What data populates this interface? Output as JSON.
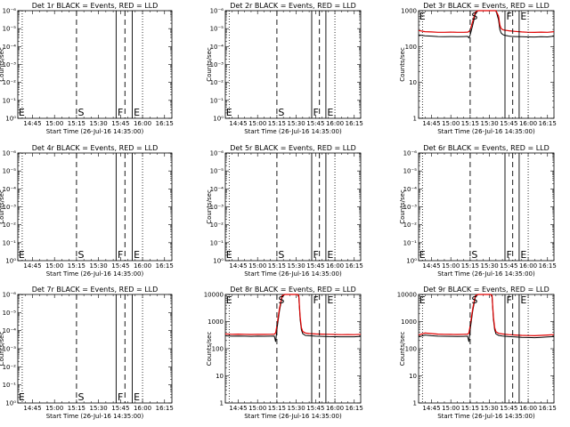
{
  "colors": {
    "background": "#ffffff",
    "events": "#000000",
    "lld": "#e00000"
  },
  "common": {
    "ylabel": "Counts/sec",
    "xlabel": "Start Time (26-Jul-16 14:35:00)",
    "x_tick_labels": [
      "14:45",
      "15:00",
      "15:15",
      "15:30",
      "15:45",
      "16:00",
      "16:15"
    ],
    "x_ticks_min": [
      10,
      25,
      40,
      55,
      70,
      85,
      100
    ],
    "xlim_min": [
      0,
      105
    ],
    "dotted_lines_min": [
      3,
      85
    ],
    "dashed_lines_min": [
      40,
      73
    ],
    "solid_lines_min": [
      67,
      78
    ],
    "marker_S": "S",
    "marker_F": "F",
    "marker_E": "E",
    "markers_min": {
      "E_left": 0.5,
      "S": 41,
      "F": 68,
      "E_right": 79
    }
  },
  "chart_data": [
    {
      "type": "line",
      "title": "Det 1r BLACK = Events, RED = LLD",
      "y_scale": "log",
      "ylim": [
        1,
        10
      ],
      "grid": false,
      "y_tick_labels": [
        "10⁰",
        "10⁻¹",
        "10⁻²",
        "10⁻³",
        "10⁻⁴",
        "10⁻⁵",
        "10⁻⁶"
      ],
      "series": []
    },
    {
      "type": "line",
      "title": "Det 2r BLACK = Events, RED = LLD",
      "y_scale": "log",
      "ylim": [
        1,
        10
      ],
      "grid": false,
      "y_tick_labels": [
        "10⁰",
        "10⁻¹",
        "10⁻²",
        "10⁻³",
        "10⁻⁴",
        "10⁻⁵",
        "10⁻⁶"
      ],
      "series": []
    },
    {
      "type": "line",
      "title": "Det 3r BLACK = Events, RED = LLD",
      "y_scale": "log",
      "ylim": [
        1,
        1000
      ],
      "grid": false,
      "y_tick_labels": [
        "1",
        "10",
        "100",
        "1000"
      ],
      "series": [
        {
          "color": "red",
          "x": [
            0,
            5,
            10,
            15,
            20,
            25,
            30,
            35,
            38,
            39,
            40,
            42,
            44,
            46,
            60,
            62,
            63,
            64,
            65,
            66,
            67,
            69,
            70,
            72,
            75,
            80,
            85,
            90,
            95,
            100,
            105
          ],
          "values": [
            280,
            260,
            255,
            250,
            250,
            252,
            250,
            250,
            252,
            262,
            290,
            500,
            900,
            1000,
            1000,
            700,
            400,
            320,
            300,
            290,
            285,
            280,
            275,
            270,
            265,
            255,
            250,
            248,
            252,
            250,
            260
          ]
        },
        {
          "color": "black",
          "x": [
            0,
            5,
            10,
            15,
            20,
            25,
            30,
            35,
            38,
            39,
            40,
            42,
            44,
            46,
            60,
            62,
            63,
            64,
            65,
            66,
            67,
            69,
            70,
            72,
            75,
            80,
            85,
            90,
            95,
            100,
            105
          ],
          "values": [
            210,
            200,
            195,
            190,
            188,
            190,
            188,
            190,
            192,
            175,
            210,
            400,
            800,
            1000,
            1000,
            550,
            300,
            240,
            220,
            210,
            205,
            200,
            195,
            192,
            190,
            188,
            186,
            185,
            188,
            186,
            195
          ]
        }
      ]
    },
    {
      "type": "line",
      "title": "Det 4r BLACK = Events, RED = LLD",
      "y_scale": "log",
      "ylim": [
        1,
        10
      ],
      "grid": false,
      "y_tick_labels": [
        "10⁰",
        "10⁻¹",
        "10⁻²",
        "10⁻³",
        "10⁻⁴",
        "10⁻⁵",
        "10⁻⁶"
      ],
      "series": []
    },
    {
      "type": "line",
      "title": "Det 5r BLACK = Events, RED = LLD",
      "y_scale": "log",
      "ylim": [
        1,
        10
      ],
      "grid": false,
      "y_tick_labels": [
        "10⁰",
        "10⁻¹",
        "10⁻²",
        "10⁻³",
        "10⁻⁴",
        "10⁻⁵",
        "10⁻⁶"
      ],
      "series": []
    },
    {
      "type": "line",
      "title": "Det 6r BLACK = Events, RED = LLD",
      "y_scale": "log",
      "ylim": [
        1,
        10
      ],
      "grid": false,
      "y_tick_labels": [
        "10⁰",
        "10⁻¹",
        "10⁻²",
        "10⁻³",
        "10⁻⁴",
        "10⁻⁵",
        "10⁻⁶"
      ],
      "series": []
    },
    {
      "type": "line",
      "title": "Det 7r BLACK = Events, RED = LLD",
      "y_scale": "log",
      "ylim": [
        1,
        10
      ],
      "grid": false,
      "y_tick_labels": [
        "10⁰",
        "10⁻¹",
        "10⁻²",
        "10⁻³",
        "10⁻⁴",
        "10⁻⁵",
        "10⁻⁶"
      ],
      "series": []
    },
    {
      "type": "line",
      "title": "Det 8r BLACK = Events, RED = LLD",
      "y_scale": "log",
      "ylim": [
        1,
        10000
      ],
      "grid": false,
      "y_tick_labels": [
        "1",
        "10",
        "100",
        "1000",
        "10000"
      ],
      "series": [
        {
          "color": "red",
          "x": [
            0,
            5,
            10,
            15,
            20,
            25,
            30,
            35,
            38,
            39,
            40,
            42,
            44,
            46,
            56,
            57,
            58,
            59,
            60,
            62,
            65,
            70,
            75,
            80,
            85,
            90,
            95,
            100,
            105
          ],
          "values": [
            350,
            340,
            345,
            340,
            335,
            340,
            338,
            340,
            345,
            380,
            700,
            3000,
            9000,
            10000,
            10000,
            9000,
            1500,
            600,
            430,
            380,
            360,
            350,
            345,
            340,
            335,
            330,
            332,
            330,
            340
          ]
        },
        {
          "color": "black",
          "x": [
            0,
            5,
            10,
            15,
            20,
            25,
            30,
            35,
            38,
            39,
            40,
            42,
            44,
            46,
            56,
            57,
            58,
            59,
            60,
            62,
            65,
            70,
            75,
            80,
            85,
            90,
            95,
            100,
            105
          ],
          "values": [
            300,
            290,
            295,
            290,
            285,
            290,
            288,
            290,
            292,
            180,
            500,
            2500,
            8000,
            10000,
            10000,
            8000,
            1200,
            500,
            360,
            310,
            300,
            290,
            285,
            280,
            278,
            275,
            276,
            275,
            285
          ]
        }
      ]
    },
    {
      "type": "line",
      "title": "Det 9r BLACK = Events, RED = LLD",
      "y_scale": "log",
      "ylim": [
        1,
        10000
      ],
      "grid": false,
      "y_tick_labels": [
        "1",
        "10",
        "100",
        "1000",
        "10000"
      ],
      "series": [
        {
          "color": "red",
          "x": [
            0,
            5,
            10,
            15,
            20,
            25,
            30,
            35,
            38,
            39,
            40,
            42,
            44,
            46,
            56,
            57,
            58,
            59,
            60,
            62,
            65,
            70,
            75,
            80,
            85,
            90,
            95,
            100,
            105
          ],
          "values": [
            320,
            380,
            360,
            345,
            340,
            338,
            335,
            340,
            345,
            380,
            700,
            3000,
            9000,
            10000,
            10000,
            9000,
            1500,
            600,
            420,
            370,
            350,
            330,
            320,
            310,
            305,
            300,
            310,
            320,
            330
          ]
        },
        {
          "color": "black",
          "x": [
            0,
            5,
            10,
            15,
            20,
            25,
            30,
            35,
            38,
            39,
            40,
            42,
            44,
            46,
            56,
            57,
            58,
            59,
            60,
            62,
            65,
            70,
            75,
            80,
            85,
            90,
            95,
            100,
            105
          ],
          "values": [
            270,
            320,
            300,
            290,
            288,
            285,
            282,
            285,
            290,
            180,
            500,
            2500,
            8000,
            10000,
            10000,
            8000,
            1200,
            500,
            350,
            310,
            295,
            280,
            270,
            262,
            258,
            255,
            262,
            270,
            280
          ]
        }
      ]
    }
  ]
}
